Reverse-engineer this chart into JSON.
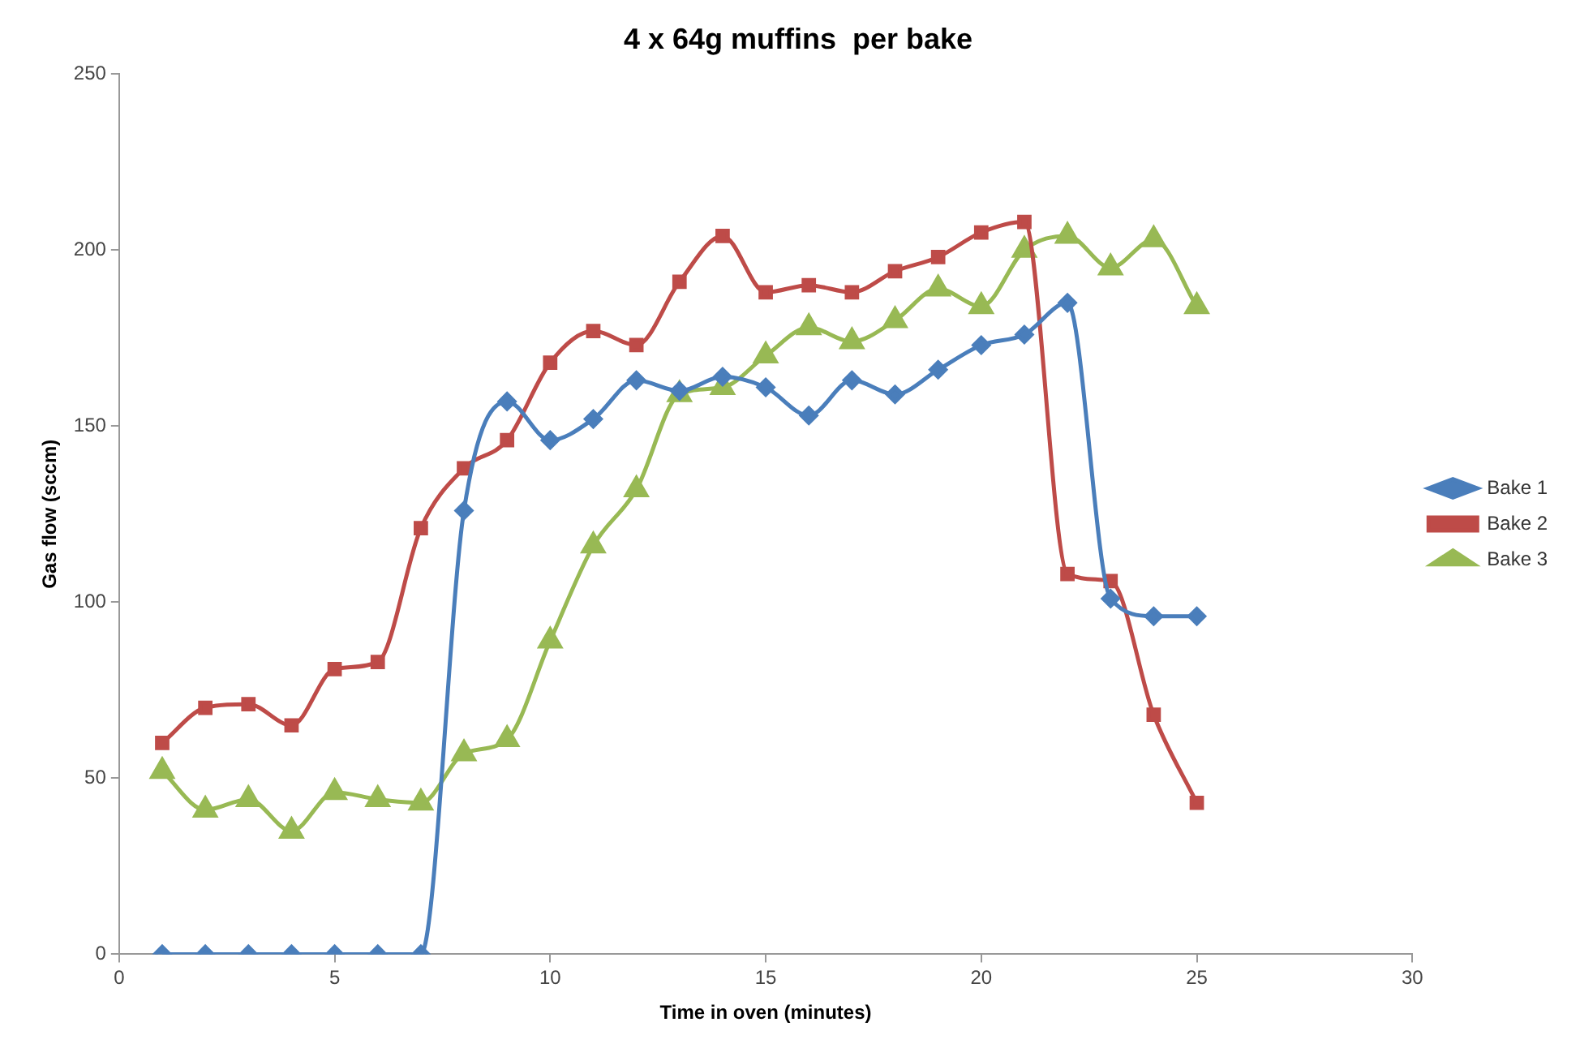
{
  "chart_data": {
    "type": "line",
    "title": "4 x 64g muffins  per bake",
    "xlabel": "Time in oven (minutes)",
    "ylabel": "Gas flow (sccm)",
    "x": [
      1,
      2,
      3,
      4,
      5,
      6,
      7,
      8,
      9,
      10,
      11,
      12,
      13,
      14,
      15,
      16,
      17,
      18,
      19,
      20,
      21,
      22,
      23,
      24,
      25
    ],
    "xlim": [
      0,
      30
    ],
    "xticks": [
      0,
      5,
      10,
      15,
      20,
      25,
      30
    ],
    "ylim": [
      0,
      250
    ],
    "yticks": [
      0,
      50,
      100,
      150,
      200,
      250
    ],
    "grid": false,
    "legend": "right",
    "series": [
      {
        "name": "Bake 1",
        "color": "#4a7ebb",
        "marker": "diamond",
        "values": [
          0,
          0,
          0,
          0,
          0,
          0,
          0,
          126,
          157,
          146,
          152,
          163,
          160,
          164,
          161,
          153,
          163,
          159,
          166,
          173,
          176,
          185,
          101,
          96,
          96
        ]
      },
      {
        "name": "Bake 2",
        "color": "#be4b48",
        "marker": "square",
        "values": [
          60,
          70,
          71,
          65,
          81,
          83,
          121,
          138,
          146,
          168,
          177,
          173,
          191,
          204,
          188,
          190,
          188,
          194,
          198,
          205,
          208,
          108,
          106,
          68,
          43
        ]
      },
      {
        "name": "Bake 3",
        "color": "#98b954",
        "marker": "triangle",
        "values": [
          52,
          41,
          44,
          35,
          46,
          44,
          43,
          57,
          61,
          89,
          116,
          132,
          159,
          161,
          170,
          178,
          174,
          180,
          189,
          184,
          200,
          204,
          195,
          203,
          184
        ]
      }
    ]
  }
}
